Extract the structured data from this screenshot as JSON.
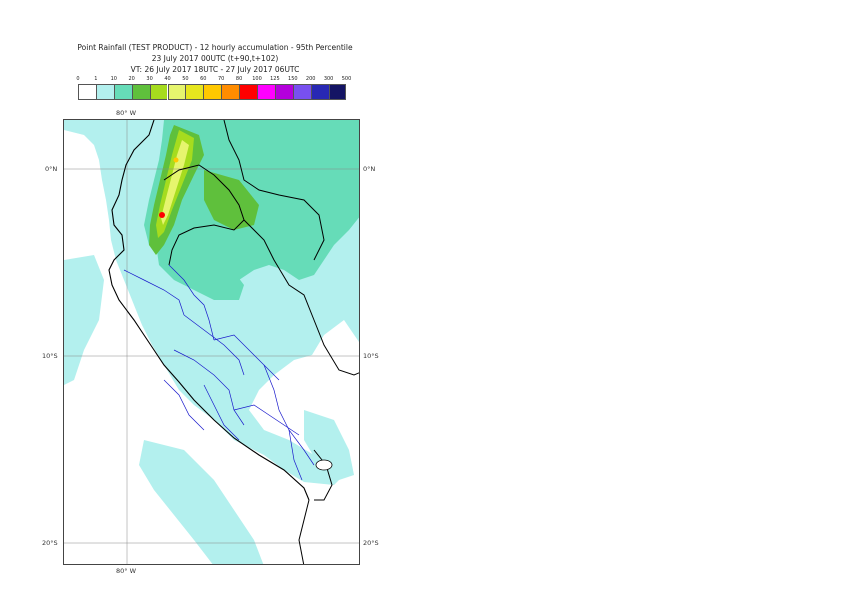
{
  "header": {
    "title": "Point Rainfall (TEST PRODUCT) - 12 hourly accumulation - 95th Percentile",
    "run": "23 July 2017 00UTC (t+90,t+102)",
    "valid": "VT: 26 July 2017 18UTC - 27 July 2017 06UTC"
  },
  "colorbar": {
    "levels": [
      "0",
      "1",
      "10",
      "20",
      "30",
      "40",
      "50",
      "60",
      "70",
      "80",
      "100",
      "125",
      "150",
      "200",
      "300",
      "500"
    ],
    "colors": [
      "#ffffff",
      "#b3f0ee",
      "#66dcb8",
      "#5fc03c",
      "#a6dc1e",
      "#e6f56e",
      "#e6e61e",
      "#ffc800",
      "#ff8c00",
      "#ff0000",
      "#ff00ff",
      "#b400dc",
      "#7850f0",
      "#2828b4",
      "#141464"
    ]
  },
  "map": {
    "lon_labels": {
      "top": "80° W",
      "bottom": "80° W"
    },
    "lat_labels": {
      "left": [
        "0°N",
        "10°S",
        "20°S"
      ],
      "right": [
        "0°N",
        "10°S",
        "20°S"
      ]
    }
  }
}
